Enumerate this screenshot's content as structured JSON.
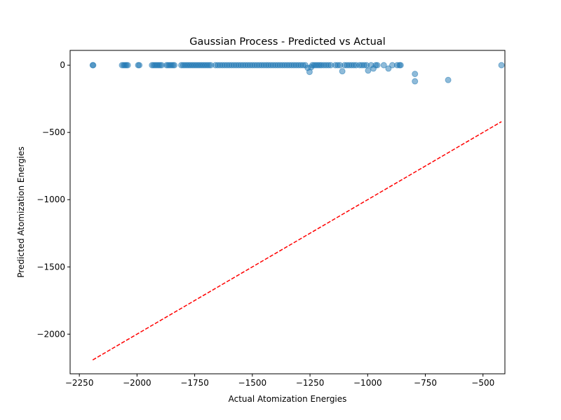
{
  "chart_data": {
    "type": "scatter",
    "title": "Gaussian Process - Predicted vs Actual",
    "xlabel": "Actual Atomization Energies",
    "ylabel": "Predicted Atomization Energies",
    "xlim": [
      -2290,
      -405
    ],
    "ylim": [
      -2295,
      110
    ],
    "xticks": [
      -2250,
      -2000,
      -1750,
      -1500,
      -1250,
      -1000,
      -750,
      -500
    ],
    "yticks": [
      -2000,
      -1500,
      -1000,
      -500,
      0
    ],
    "xtick_labels": [
      "−2250",
      "−2000",
      "−1750",
      "−1500",
      "−1250",
      "−1000",
      "−750",
      "−500"
    ],
    "ytick_labels": [
      "−2000",
      "−1500",
      "−1000",
      "−500",
      "0"
    ],
    "grid": false,
    "point_color": "#1f77b4",
    "point_alpha": 0.5,
    "reference_line": {
      "style": "dashed",
      "color": "#ff0000",
      "x": [
        -2192,
        -420
      ],
      "y": [
        -2192,
        -420
      ]
    },
    "series": [
      {
        "points": [
          [
            -2192,
            0
          ],
          [
            -2190,
            0
          ],
          [
            -2065,
            0
          ],
          [
            -2058,
            0
          ],
          [
            -2052,
            0
          ],
          [
            -2046,
            0
          ],
          [
            -2040,
            0
          ],
          [
            -1995,
            0
          ],
          [
            -1990,
            0
          ],
          [
            -1935,
            0
          ],
          [
            -1928,
            0
          ],
          [
            -1921,
            0
          ],
          [
            -1914,
            0
          ],
          [
            -1907,
            0
          ],
          [
            -1900,
            0
          ],
          [
            -1893,
            0
          ],
          [
            -1872,
            0
          ],
          [
            -1865,
            0
          ],
          [
            -1858,
            0
          ],
          [
            -1851,
            0
          ],
          [
            -1844,
            0
          ],
          [
            -1838,
            0
          ],
          [
            -1808,
            0
          ],
          [
            -1800,
            0
          ],
          [
            -1792,
            0
          ],
          [
            -1784,
            0
          ],
          [
            -1776,
            0
          ],
          [
            -1768,
            0
          ],
          [
            -1760,
            0
          ],
          [
            -1752,
            0
          ],
          [
            -1744,
            0
          ],
          [
            -1736,
            0
          ],
          [
            -1728,
            0
          ],
          [
            -1720,
            0
          ],
          [
            -1712,
            0
          ],
          [
            -1704,
            0
          ],
          [
            -1696,
            0
          ],
          [
            -1688,
            0
          ],
          [
            -1680,
            0
          ],
          [
            -1660,
            0
          ],
          [
            -1650,
            0
          ],
          [
            -1640,
            0
          ],
          [
            -1630,
            0
          ],
          [
            -1620,
            0
          ],
          [
            -1610,
            0
          ],
          [
            -1600,
            0
          ],
          [
            -1590,
            0
          ],
          [
            -1580,
            0
          ],
          [
            -1570,
            0
          ],
          [
            -1560,
            0
          ],
          [
            -1550,
            0
          ],
          [
            -1540,
            0
          ],
          [
            -1530,
            0
          ],
          [
            -1520,
            0
          ],
          [
            -1510,
            0
          ],
          [
            -1500,
            0
          ],
          [
            -1490,
            0
          ],
          [
            -1480,
            0
          ],
          [
            -1470,
            0
          ],
          [
            -1460,
            0
          ],
          [
            -1450,
            0
          ],
          [
            -1440,
            0
          ],
          [
            -1430,
            0
          ],
          [
            -1420,
            0
          ],
          [
            -1410,
            0
          ],
          [
            -1400,
            0
          ],
          [
            -1390,
            0
          ],
          [
            -1380,
            0
          ],
          [
            -1370,
            0
          ],
          [
            -1360,
            0
          ],
          [
            -1350,
            0
          ],
          [
            -1340,
            0
          ],
          [
            -1330,
            0
          ],
          [
            -1320,
            0
          ],
          [
            -1310,
            0
          ],
          [
            -1300,
            0
          ],
          [
            -1290,
            0
          ],
          [
            -1280,
            0
          ],
          [
            -1270,
            0
          ],
          [
            -1260,
            -20
          ],
          [
            -1252,
            -50
          ],
          [
            -1245,
            -15
          ],
          [
            -1240,
            0
          ],
          [
            -1232,
            0
          ],
          [
            -1224,
            0
          ],
          [
            -1216,
            0
          ],
          [
            -1208,
            0
          ],
          [
            -1200,
            0
          ],
          [
            -1190,
            0
          ],
          [
            -1180,
            0
          ],
          [
            -1170,
            0
          ],
          [
            -1160,
            0
          ],
          [
            -1140,
            0
          ],
          [
            -1130,
            0
          ],
          [
            -1120,
            0
          ],
          [
            -1110,
            -45
          ],
          [
            -1100,
            0
          ],
          [
            -1090,
            0
          ],
          [
            -1080,
            0
          ],
          [
            -1070,
            0
          ],
          [
            -1060,
            0
          ],
          [
            -1050,
            0
          ],
          [
            -1035,
            0
          ],
          [
            -1025,
            0
          ],
          [
            -1015,
            0
          ],
          [
            -1005,
            0
          ],
          [
            -998,
            -40
          ],
          [
            -985,
            0
          ],
          [
            -975,
            -25
          ],
          [
            -965,
            0
          ],
          [
            -958,
            0
          ],
          [
            -930,
            0
          ],
          [
            -910,
            -25
          ],
          [
            -893,
            0
          ],
          [
            -872,
            0
          ],
          [
            -862,
            0
          ],
          [
            -857,
            0
          ],
          [
            -795,
            -65
          ],
          [
            -795,
            -120
          ],
          [
            -651,
            -110
          ],
          [
            -420,
            0
          ]
        ]
      }
    ]
  }
}
